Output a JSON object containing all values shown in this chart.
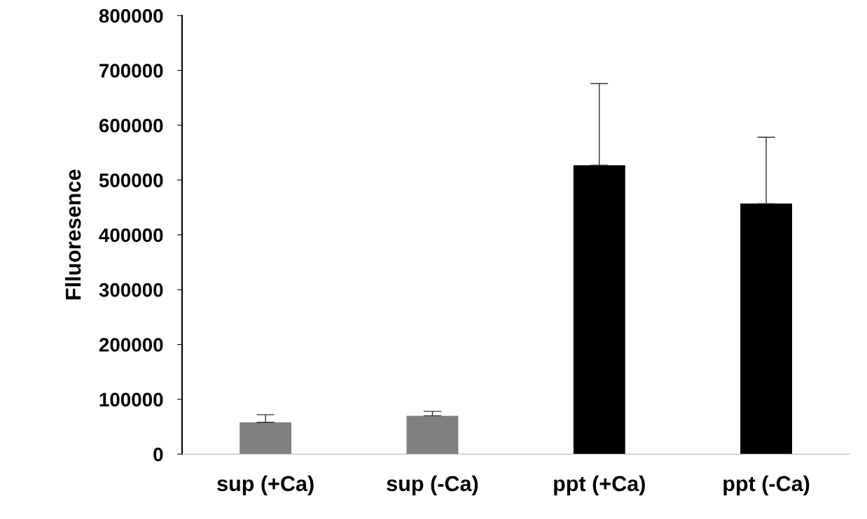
{
  "chart_data": {
    "type": "bar",
    "ylabel": "Flluoresence",
    "categories": [
      "sup (+Ca)",
      "sup (-Ca)",
      "ppt (+Ca)",
      "ppt (-Ca)"
    ],
    "values": [
      58000,
      70000,
      527000,
      457000
    ],
    "colors": [
      "#808080",
      "#808080",
      "#000000",
      "#000000"
    ],
    "errors": [
      [
        58000,
        72000
      ],
      [
        70000,
        78000
      ],
      [
        527000,
        676000
      ],
      [
        457000,
        578000
      ]
    ],
    "ylim": [
      0,
      800000
    ],
    "yticks": [
      0,
      100000,
      200000,
      300000,
      400000,
      500000,
      600000,
      700000,
      800000
    ],
    "grid": false,
    "legend": false
  }
}
